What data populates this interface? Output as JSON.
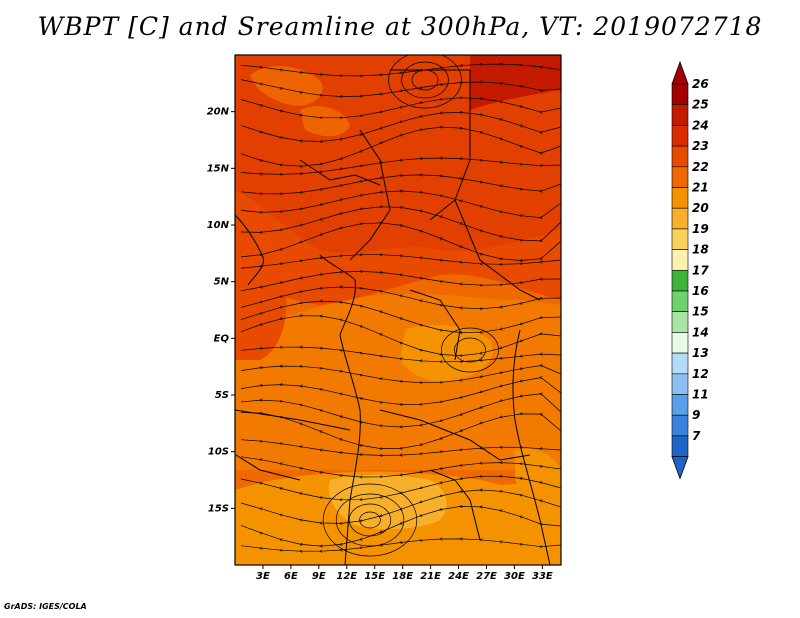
{
  "title": "WBPT [C] and Sreamline at 300hPa, VT: 2019072718",
  "credit": "GrADS: IGES/COLA",
  "map": {
    "lon_range": [
      0,
      35
    ],
    "lat_range": [
      -20,
      25
    ],
    "lon_ticks": [
      "3E",
      "6E",
      "9E",
      "12E",
      "15E",
      "18E",
      "21E",
      "24E",
      "27E",
      "30E",
      "33E"
    ],
    "lat_ticks": [
      "20N",
      "15N",
      "10N",
      "5N",
      "EQ",
      "5S",
      "10S",
      "15S"
    ]
  },
  "colorbar": {
    "labels": [
      "26",
      "25",
      "24",
      "23",
      "22",
      "21",
      "20",
      "19",
      "18",
      "17",
      "16",
      "15",
      "14",
      "13",
      "12",
      "11",
      "9",
      "7"
    ],
    "colors": [
      "#a50000",
      "#c41a00",
      "#dc2d00",
      "#e84a00",
      "#f06800",
      "#f59200",
      "#f8b02a",
      "#fad25a",
      "#fdf0b0",
      "#3cb43c",
      "#6ed26e",
      "#a8e6a8",
      "#e6fae6",
      "#b4dcf8",
      "#8cc0f0",
      "#5aa0e8",
      "#3782dc",
      "#1e64c8"
    ]
  },
  "fields": {
    "legend": "WBPT [C] shaded, 300hPa streamlines"
  }
}
